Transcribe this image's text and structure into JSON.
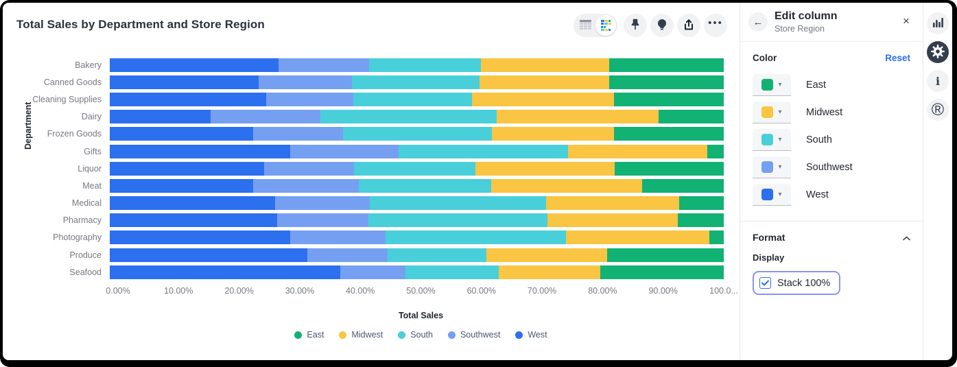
{
  "header": {
    "title": "Total Sales by Department and Store Region"
  },
  "toolbar": {
    "icons": [
      "table-view-toggle",
      "chart-view-toggle",
      "pin",
      "insight-bulb",
      "share",
      "more-options"
    ]
  },
  "chart_data": {
    "type": "bar",
    "orientation": "horizontal",
    "stacked": true,
    "stack_100_percent": true,
    "title": "Total Sales by Department and Store Region",
    "xlabel": "Total Sales",
    "ylabel": "Department",
    "xlim": [
      0,
      100
    ],
    "grid": false,
    "x_ticks": [
      "0.00%",
      "10.00%",
      "20.00%",
      "30.00%",
      "40.00%",
      "50.00%",
      "60.00%",
      "70.00%",
      "80.00%",
      "90.00%",
      "100.0..."
    ],
    "categories": [
      "Bakery",
      "Canned Goods",
      "Cleaning Supplies",
      "Dairy",
      "Frozen Goods",
      "Gifts",
      "Liquor",
      "Meat",
      "Medical",
      "Pharmacy",
      "Photography",
      "Produce",
      "Seafood"
    ],
    "series": [
      {
        "name": "West",
        "color": "#2c6fef",
        "values": [
          27.5,
          24.3,
          25.5,
          16.4,
          23.3,
          29.4,
          25.1,
          23.3,
          26.9,
          27.3,
          29.4,
          32.2,
          37.5
        ]
      },
      {
        "name": "Southwest",
        "color": "#75a0f2",
        "values": [
          14.7,
          15.1,
          14.2,
          17.9,
          14.7,
          17.6,
          14.7,
          17.3,
          15.5,
          14.8,
          15.5,
          13.1,
          10.7
        ]
      },
      {
        "name": "South",
        "color": "#49cfda",
        "values": [
          18.2,
          20.8,
          19.3,
          28.7,
          24.2,
          27.6,
          19.8,
          21.5,
          28.7,
          29.2,
          29.4,
          16.0,
          15.1
        ]
      },
      {
        "name": "Midwest",
        "color": "#f9c542",
        "values": [
          20.9,
          21.1,
          23.1,
          26.4,
          19.9,
          22.7,
          22.6,
          24.6,
          21.6,
          21.2,
          23.3,
          19.7,
          16.6
        ]
      },
      {
        "name": "East",
        "color": "#12b174",
        "values": [
          18.7,
          18.7,
          17.9,
          10.6,
          17.9,
          2.7,
          17.8,
          13.3,
          7.3,
          7.5,
          2.4,
          19.0,
          20.1
        ]
      }
    ],
    "legend": {
      "position": "bottom",
      "items": [
        {
          "label": "East",
          "color": "#12b174"
        },
        {
          "label": "Midwest",
          "color": "#f9c542"
        },
        {
          "label": "South",
          "color": "#49cfda"
        },
        {
          "label": "Southwest",
          "color": "#75a0f2"
        },
        {
          "label": "West",
          "color": "#2c6fef"
        }
      ]
    }
  },
  "panel": {
    "title": "Edit column",
    "subtitle": "Store Region",
    "close_icon": "×",
    "back_icon": "←",
    "color_section": {
      "label": "Color",
      "reset_label": "Reset",
      "rows": [
        {
          "label": "East",
          "color": "#12b174"
        },
        {
          "label": "Midwest",
          "color": "#f9c542"
        },
        {
          "label": "South",
          "color": "#49cfda"
        },
        {
          "label": "Southwest",
          "color": "#75a0f2"
        },
        {
          "label": "West",
          "color": "#2c6fef"
        }
      ]
    },
    "format_section": {
      "label": "Format",
      "display_label": "Display",
      "stack_checkbox": {
        "label": "Stack 100%",
        "checked": true
      }
    }
  },
  "rail": {
    "items": [
      "chart",
      "settings",
      "info",
      "r-logo"
    ],
    "active": "settings"
  },
  "colors": {
    "accent_blue": "#2a6ff2",
    "focus_ring": "#8b93f0",
    "icon_dark": "#343d4c"
  }
}
